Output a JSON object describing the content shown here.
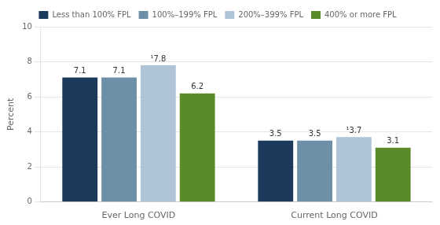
{
  "chart_data": {
    "type": "bar",
    "categories": [
      "Ever Long COVID",
      "Current Long COVID"
    ],
    "series": [
      {
        "name": "Less than 100% FPL",
        "color": "#1b3a5c",
        "values": [
          7.1,
          3.5
        ]
      },
      {
        "name": "100%–199% FPL",
        "color": "#6e8fa8",
        "values": [
          7.1,
          3.5
        ]
      },
      {
        "name": "200%–399% FPL",
        "color": "#b0c4d8",
        "values": [
          7.8,
          3.7
        ],
        "value_labels": [
          "¹7.8",
          "¹3.7"
        ]
      },
      {
        "name": "400% or more FPL",
        "color": "#5a8a2a",
        "values": [
          6.2,
          3.1
        ]
      }
    ],
    "ylabel": "Percent",
    "ylim": [
      0,
      10
    ],
    "yticks": [
      0,
      2,
      4,
      6,
      8,
      10
    ],
    "grid": true,
    "legend": "top",
    "data_labels": true
  }
}
